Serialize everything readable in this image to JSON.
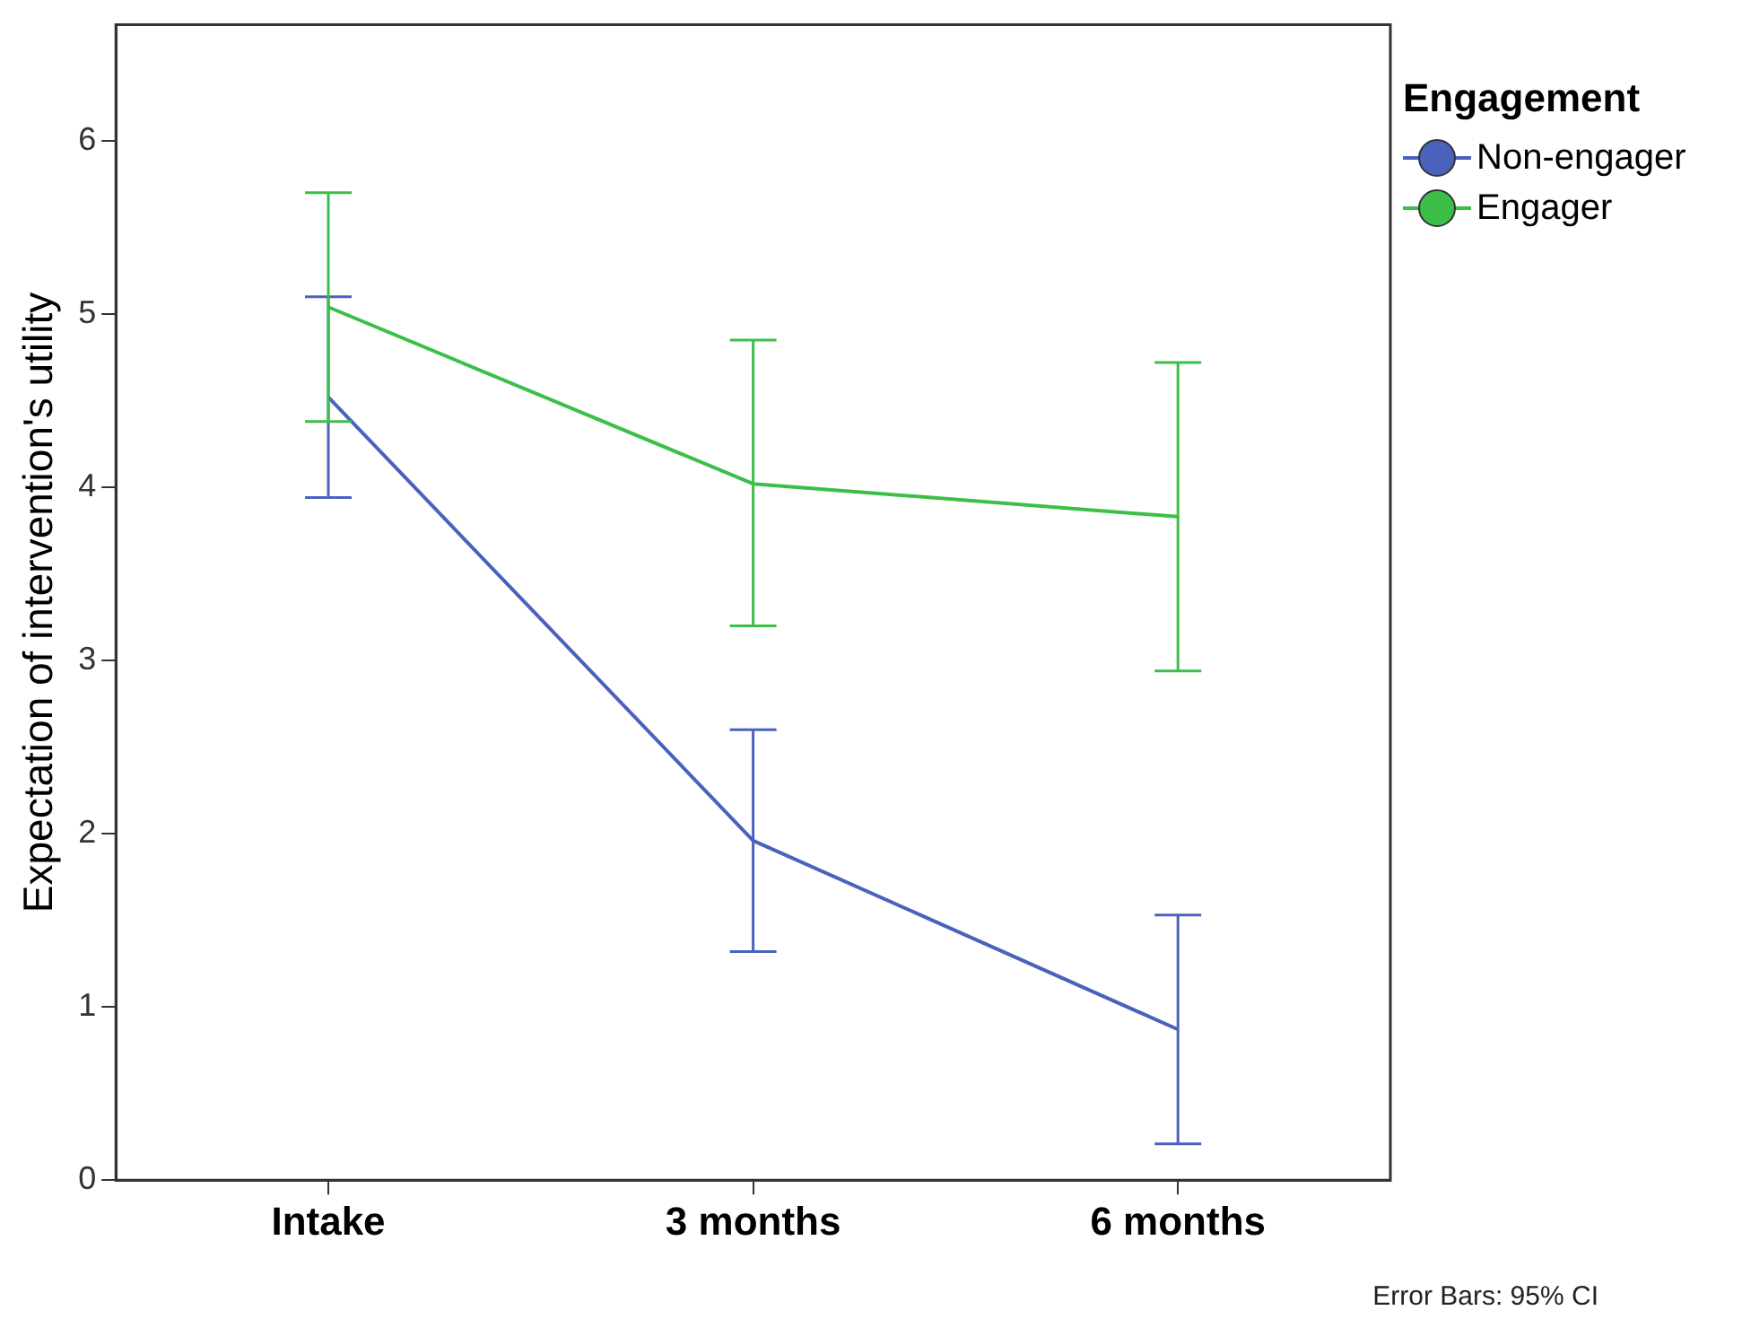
{
  "chart_data": {
    "type": "line",
    "ylabel": "Expectation of intervention's utility",
    "legend_title": "Engagement",
    "categories": [
      "Intake",
      "3 months",
      "6 months"
    ],
    "series": [
      {
        "name": "Non-engager",
        "color": "#4a62bd",
        "values": [
          4.52,
          1.96,
          0.87
        ],
        "errors": [
          [
            3.94,
            5.1
          ],
          [
            1.32,
            2.6
          ],
          [
            0.21,
            1.53
          ]
        ]
      },
      {
        "name": "Engager",
        "color": "#3cbf48",
        "values": [
          5.04,
          4.02,
          3.83
        ],
        "errors": [
          [
            4.38,
            5.7
          ],
          [
            3.2,
            4.85
          ],
          [
            2.94,
            4.72
          ]
        ]
      }
    ],
    "ylim": [
      0,
      6.67
    ],
    "yticks": [
      0,
      1,
      2,
      3,
      4,
      5,
      6
    ],
    "grid": false,
    "legend": "right",
    "marker": "none",
    "line_style": "solid",
    "annotations": [
      "Error Bars: 95% CI"
    ]
  }
}
